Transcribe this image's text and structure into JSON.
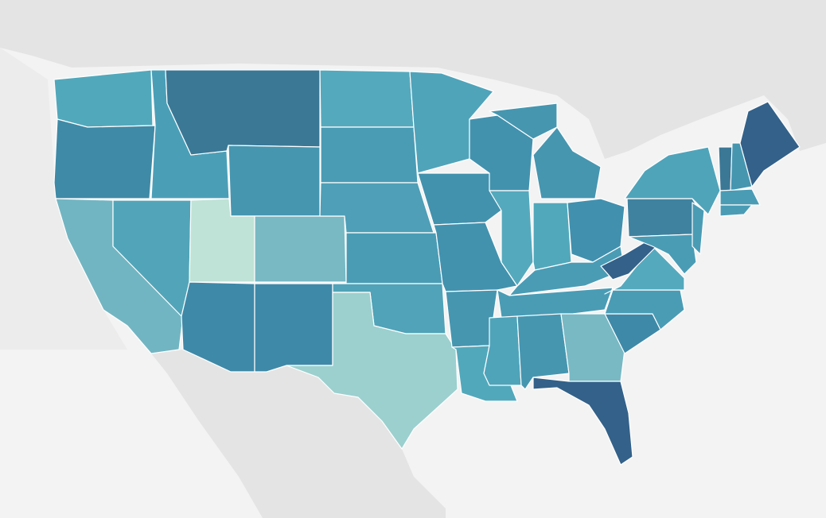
{
  "map": {
    "region_colors": [
      "#52a8bb",
      "#3f8aa6",
      "#72b5c2",
      "#52a5b9",
      "#4a9fb7",
      "#3b7896",
      "#4696b0",
      "#bfe3d6",
      "#78b9c4",
      "#3f89a8",
      "#3f89a8",
      "#55a9bd",
      "#4a9cb5",
      "#4e9fb7",
      "#4a9cb5",
      "#50a3b8",
      "#9bd0cf",
      "#4fa4ba",
      "#4292ae",
      "#4292ae",
      "#4696b0",
      "#52a8bb",
      "#4292ae",
      "#55a9bd",
      "#4696b0",
      "#4696b0",
      "#52a8bb",
      "#4190ae",
      "#4a9cb5",
      "#4a9cb5",
      "#4fa4ba",
      "#4696b0",
      "#78b9c4",
      "#336189",
      "#3f89a8",
      "#4a9cb5",
      "#55a9bd",
      "#336189",
      "#3f82a0",
      "#4fa4ba",
      "#4a9cb5",
      "#4a9cb5",
      "#3b7896",
      "#4696b0",
      "#336189",
      "#4a9cb5",
      "#4a9cb5"
    ]
  }
}
